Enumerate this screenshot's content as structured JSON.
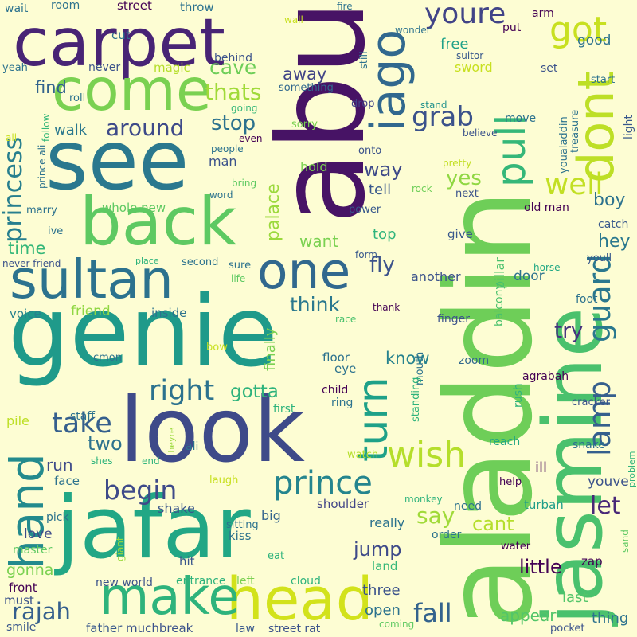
{
  "background_color": "#fdfdd3",
  "palette": [
    "#440154",
    "#3b528b",
    "#21908d",
    "#5dc962",
    "#fde725"
  ],
  "words": [
    {
      "text": "aladdin",
      "color": "#6ece58"
    },
    {
      "text": "abu",
      "color": "#471365"
    },
    {
      "text": "genie",
      "color": "#1f9a8a"
    },
    {
      "text": "jasmine",
      "color": "#4ac16d"
    },
    {
      "text": "look",
      "color": "#3e4a89"
    },
    {
      "text": "jafar",
      "color": "#22a785"
    },
    {
      "text": "see",
      "color": "#2a788e"
    },
    {
      "text": "carpet",
      "color": "#482475"
    },
    {
      "text": "back",
      "color": "#5ec962"
    },
    {
      "text": "head",
      "color": "#d2e21b"
    },
    {
      "text": "sultan",
      "color": "#2c728e"
    },
    {
      "text": "come",
      "color": "#7ad151"
    },
    {
      "text": "make",
      "color": "#2eb37c"
    },
    {
      "text": "one",
      "color": "#31688e"
    },
    {
      "text": "iago",
      "color": "#31688e"
    },
    {
      "text": "pull",
      "color": "#35b779"
    },
    {
      "text": "dont",
      "color": "#bddf26"
    },
    {
      "text": "hand",
      "color": "#238a8d"
    },
    {
      "text": "turn",
      "color": "#1fa188"
    },
    {
      "text": "wish",
      "color": "#b5de2b"
    },
    {
      "text": "guard",
      "color": "#2a788e"
    },
    {
      "text": "lamp",
      "color": "#355f8d"
    },
    {
      "text": "prince",
      "color": "#25858e"
    },
    {
      "text": "got",
      "color": "#c8e020"
    },
    {
      "text": "princess",
      "color": "#277f8e"
    },
    {
      "text": "well",
      "color": "#c2df23"
    },
    {
      "text": "look",
      "color": "#3e4a89"
    },
    {
      "text": "youre",
      "color": "#414487"
    },
    {
      "text": "grab",
      "color": "#3b528b"
    },
    {
      "text": "take",
      "color": "#355f8d"
    },
    {
      "text": "right",
      "color": "#2c728e"
    },
    {
      "text": "begin",
      "color": "#3e4a89"
    },
    {
      "text": "fall",
      "color": "#33638d"
    },
    {
      "text": "rajah",
      "color": "#355f8d"
    },
    {
      "text": "cave",
      "color": "#6ece58"
    },
    {
      "text": "around",
      "color": "#3e4a89"
    },
    {
      "text": "thats",
      "color": "#a0da39"
    },
    {
      "text": "stop",
      "color": "#2c728e"
    },
    {
      "text": "palace",
      "color": "#9bd93c"
    },
    {
      "text": "find",
      "color": "#33638d"
    },
    {
      "text": "away",
      "color": "#414487"
    },
    {
      "text": "sword",
      "color": "#c8e020"
    },
    {
      "text": "free",
      "color": "#1fa188"
    },
    {
      "text": "carpet",
      "color": "#482475"
    },
    {
      "text": "fly",
      "color": "#3b528b"
    },
    {
      "text": "way",
      "color": "#3e4a89"
    },
    {
      "text": "yes",
      "color": "#90d743"
    },
    {
      "text": "tell",
      "color": "#38588c"
    },
    {
      "text": "boy",
      "color": "#2c728e"
    },
    {
      "text": "hey",
      "color": "#2a788e"
    },
    {
      "text": "try",
      "color": "#46327e"
    },
    {
      "text": "let",
      "color": "#482878"
    },
    {
      "text": "say",
      "color": "#a0da39"
    },
    {
      "text": "cant",
      "color": "#b5de2b"
    },
    {
      "text": "jump",
      "color": "#3e4a89"
    },
    {
      "text": "little",
      "color": "#440154"
    },
    {
      "text": "think",
      "color": "#2a788e"
    },
    {
      "text": "gotta",
      "color": "#2eb37c"
    },
    {
      "text": "two",
      "color": "#2c728e"
    },
    {
      "text": "run",
      "color": "#3e4a89"
    },
    {
      "text": "time",
      "color": "#35b779"
    },
    {
      "text": "walk",
      "color": "#2a788e"
    },
    {
      "text": "know",
      "color": "#26828e"
    },
    {
      "text": "finally",
      "color": "#7ad151"
    },
    {
      "text": "top",
      "color": "#2fb47c"
    },
    {
      "text": "want",
      "color": "#7ad151"
    },
    {
      "text": "whole new",
      "color": "#5ec962"
    },
    {
      "text": "man",
      "color": "#3b528b"
    },
    {
      "text": "hold",
      "color": "#7ad151"
    },
    {
      "text": "old man",
      "color": "#440154"
    },
    {
      "text": "give",
      "color": "#38588c"
    },
    {
      "text": "door",
      "color": "#2c728e"
    },
    {
      "text": "another",
      "color": "#3b528b"
    },
    {
      "text": "appear",
      "color": "#52c569"
    },
    {
      "text": "three",
      "color": "#3b528b"
    },
    {
      "text": "open",
      "color": "#2c728e"
    },
    {
      "text": "shake",
      "color": "#39568c"
    },
    {
      "text": "turban",
      "color": "#1f9e89"
    },
    {
      "text": "youve",
      "color": "#3b528b"
    },
    {
      "text": "gonna",
      "color": "#7ad151"
    },
    {
      "text": "love",
      "color": "#3e4a89"
    },
    {
      "text": "face",
      "color": "#2c728e"
    },
    {
      "text": "pile",
      "color": "#bddf26"
    },
    {
      "text": "staff",
      "color": "#2c728e"
    },
    {
      "text": "inside",
      "color": "#2c728e"
    },
    {
      "text": "friend",
      "color": "#90d743"
    },
    {
      "text": "voice",
      "color": "#26828e"
    },
    {
      "text": "never",
      "color": "#3b528b"
    },
    {
      "text": "magic",
      "color": "#b5de2b"
    },
    {
      "text": "behind",
      "color": "#3b528b"
    },
    {
      "text": "something",
      "color": "#31688e"
    },
    {
      "text": "drop",
      "color": "#414487"
    },
    {
      "text": "stand",
      "color": "#21918c"
    },
    {
      "text": "sorry",
      "color": "#7ad151"
    },
    {
      "text": "going",
      "color": "#35b779"
    },
    {
      "text": "bring",
      "color": "#5ec962"
    },
    {
      "text": "word",
      "color": "#2c728e"
    },
    {
      "text": "people",
      "color": "#2c728e"
    },
    {
      "text": "even",
      "color": "#440154"
    },
    {
      "text": "onto",
      "color": "#3b528b"
    },
    {
      "text": "pretty",
      "color": "#c2df23"
    },
    {
      "text": "rock",
      "color": "#6ece58"
    },
    {
      "text": "next",
      "color": "#3b528b"
    },
    {
      "text": "power",
      "color": "#38588c"
    },
    {
      "text": "form",
      "color": "#38588c"
    },
    {
      "text": "pillar",
      "color": "#4ac16d"
    },
    {
      "text": "thank",
      "color": "#440154"
    },
    {
      "text": "finger",
      "color": "#3b528b"
    },
    {
      "text": "race",
      "color": "#4ac16d"
    },
    {
      "text": "balcony",
      "color": "#4ac16d"
    },
    {
      "text": "foot",
      "color": "#2c728e"
    },
    {
      "text": "zoom",
      "color": "#31688e"
    },
    {
      "text": "agrabah",
      "color": "#440154"
    },
    {
      "text": "cracker",
      "color": "#3b528b"
    },
    {
      "text": "reach",
      "color": "#22a884"
    },
    {
      "text": "snake",
      "color": "#2c728e"
    },
    {
      "text": "watch",
      "color": "#b5de2b"
    },
    {
      "text": "help",
      "color": "#440154"
    },
    {
      "text": "ill",
      "color": "#440154"
    },
    {
      "text": "need",
      "color": "#2c728e"
    },
    {
      "text": "monkey",
      "color": "#2eb37c"
    },
    {
      "text": "water",
      "color": "#440154"
    },
    {
      "text": "order",
      "color": "#2c728e"
    },
    {
      "text": "zap",
      "color": "#440154"
    },
    {
      "text": "land",
      "color": "#35b779"
    },
    {
      "text": "really",
      "color": "#2c728e"
    },
    {
      "text": "shoulder",
      "color": "#414487"
    },
    {
      "text": "sitting",
      "color": "#2c728e"
    },
    {
      "text": "big",
      "color": "#33638d"
    },
    {
      "text": "laugh",
      "color": "#c8e020"
    },
    {
      "text": "kiss",
      "color": "#2c728e"
    },
    {
      "text": "eat",
      "color": "#2eb37c"
    },
    {
      "text": "hit",
      "color": "#39568c"
    },
    {
      "text": "left",
      "color": "#7ad151"
    },
    {
      "text": "cloud",
      "color": "#2eb37c"
    },
    {
      "text": "entrance",
      "color": "#2eb37c"
    },
    {
      "text": "new world",
      "color": "#3b528b"
    },
    {
      "text": "front",
      "color": "#440154"
    },
    {
      "text": "must",
      "color": "#3b528b"
    },
    {
      "text": "master",
      "color": "#5ec962"
    },
    {
      "text": "pick",
      "color": "#2c728e"
    },
    {
      "text": "giant",
      "color": "#9bd93c"
    },
    {
      "text": "smile",
      "color": "#39568c"
    },
    {
      "text": "father",
      "color": "#38588c"
    },
    {
      "text": "muchbreak",
      "color": "#3b528b"
    },
    {
      "text": "law",
      "color": "#38588c"
    },
    {
      "text": "street rat",
      "color": "#3b528b"
    },
    {
      "text": "coming",
      "color": "#5ec962"
    },
    {
      "text": "last",
      "color": "#52c569"
    },
    {
      "text": "thing",
      "color": "#2c728e"
    },
    {
      "text": "pocket",
      "color": "#3b528b"
    },
    {
      "text": "sand",
      "color": "#5ec962"
    },
    {
      "text": "problem",
      "color": "#2eb37c"
    },
    {
      "text": "catch",
      "color": "#38588c"
    },
    {
      "text": "horse",
      "color": "#22a884"
    },
    {
      "text": "youll",
      "color": "#38588c"
    },
    {
      "text": "light",
      "color": "#38588c"
    },
    {
      "text": "start",
      "color": "#2c728e"
    },
    {
      "text": "set",
      "color": "#3b528b"
    },
    {
      "text": "treasure",
      "color": "#2c728e"
    },
    {
      "text": "youaladdin",
      "color": "#2c728e"
    },
    {
      "text": "believe",
      "color": "#3b528b"
    },
    {
      "text": "move",
      "color": "#2c728e"
    },
    {
      "text": "suitor",
      "color": "#38588c"
    },
    {
      "text": "wonder",
      "color": "#2c728e"
    },
    {
      "text": "arm",
      "color": "#440154"
    },
    {
      "text": "put",
      "color": "#440154"
    },
    {
      "text": "good",
      "color": "#2c728e"
    },
    {
      "text": "street",
      "color": "#440154"
    },
    {
      "text": "throw",
      "color": "#2c728e"
    },
    {
      "text": "room",
      "color": "#2c728e"
    },
    {
      "text": "wait",
      "color": "#2c728e"
    },
    {
      "text": "fire",
      "color": "#2c728e"
    },
    {
      "text": "wall",
      "color": "#c8e020"
    },
    {
      "text": "still",
      "color": "#2c728e"
    },
    {
      "text": "cut",
      "color": "#2c728e"
    },
    {
      "text": "yeah",
      "color": "#2c728e"
    },
    {
      "text": "roll",
      "color": "#2c728e"
    },
    {
      "text": "follow",
      "color": "#35b779"
    },
    {
      "text": "ali",
      "color": "#c8e020"
    },
    {
      "text": "prince ali",
      "color": "#2c728e"
    },
    {
      "text": "marry",
      "color": "#2c728e"
    },
    {
      "text": "ive",
      "color": "#2c728e"
    },
    {
      "text": "never friend",
      "color": "#3b528b"
    },
    {
      "text": "place",
      "color": "#2eb37c"
    },
    {
      "text": "second",
      "color": "#2c728e"
    },
    {
      "text": "sure",
      "color": "#2c728e"
    },
    {
      "text": "life",
      "color": "#5ec962"
    },
    {
      "text": "bow",
      "color": "#c8e020"
    },
    {
      "text": "cmon",
      "color": "#2c728e"
    },
    {
      "text": "floor",
      "color": "#2c728e"
    },
    {
      "text": "eye",
      "color": "#2c728e"
    },
    {
      "text": "mouth",
      "color": "#2c728e"
    },
    {
      "text": "rush",
      "color": "#2eb37c"
    },
    {
      "text": "child",
      "color": "#440154"
    },
    {
      "text": "ring",
      "color": "#2c728e"
    },
    {
      "text": "standing",
      "color": "#2eb37c"
    },
    {
      "text": "first",
      "color": "#2eb37c"
    },
    {
      "text": "theyre",
      "color": "#9bd93c"
    },
    {
      "text": "ali",
      "color": "#2c728e"
    },
    {
      "text": "shes",
      "color": "#2eb37c"
    },
    {
      "text": "end",
      "color": "#2eb37c"
    }
  ]
}
